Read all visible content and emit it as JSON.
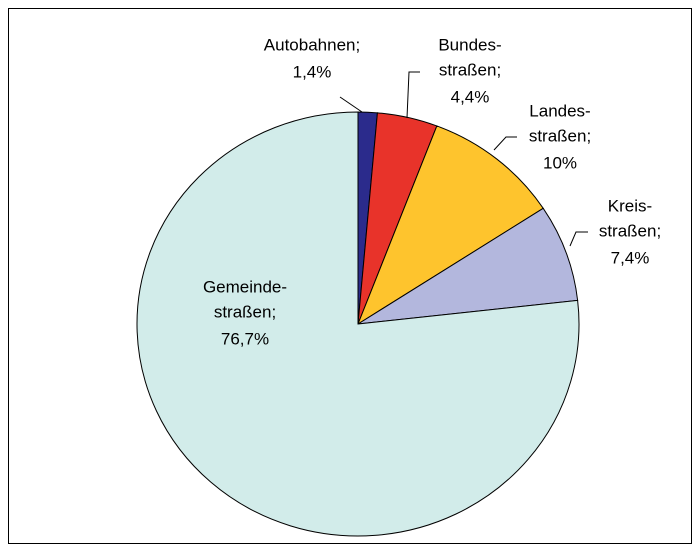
{
  "chart_data": {
    "type": "pie",
    "categories": [
      [
        "Autobahnen;"
      ],
      [
        "Bundes-",
        "straßen;"
      ],
      [
        "Landes-",
        "straßen;"
      ],
      [
        "Kreis-",
        "straßen;"
      ],
      [
        "Gemeinde-",
        "straßen;"
      ]
    ],
    "values": [
      1.4,
      4.4,
      10,
      7.4,
      76.7
    ],
    "value_labels": [
      "1,4%",
      "4,4%",
      "10%",
      "7,4%",
      "76,7%"
    ],
    "colors": [
      "#2b2b8c",
      "#e8332a",
      "#fec42d",
      "#b3b7dd",
      "#d2ecea"
    ]
  }
}
